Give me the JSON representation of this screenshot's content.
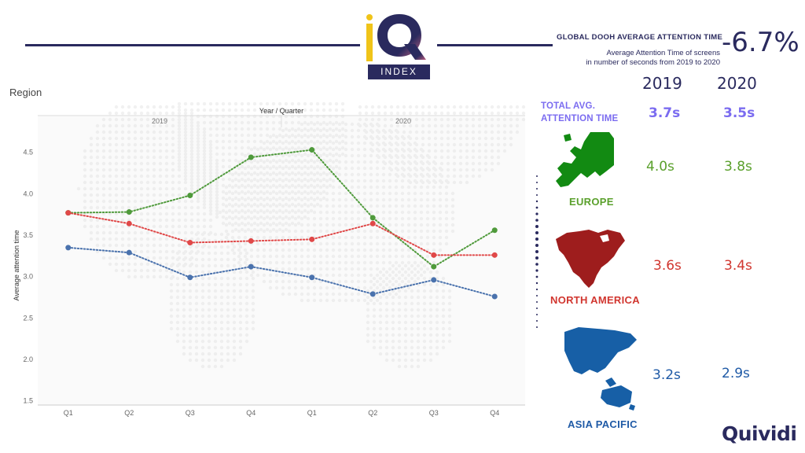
{
  "header": {
    "logo_text": "INDEX",
    "global_title": "GLOBAL DOOH AVERAGE ATTENTION TIME",
    "global_value": "-6.7%",
    "global_sub_line1": "Average Attention Time of screens",
    "global_sub_line2": "in number of seconds from 2019 to 2020"
  },
  "region_label": "Region",
  "columns": {
    "y2019": "2019",
    "y2020": "2020"
  },
  "total": {
    "label_line1": "TOTAL AVG.",
    "label_line2": "ATTENTION TIME",
    "v2019": "3.7s",
    "v2020": "3.5s"
  },
  "regions": [
    {
      "name": "EUROPE",
      "v2019": "4.0s",
      "v2020": "3.8s",
      "color": "#5aa02c",
      "icon": "europe-map-icon"
    },
    {
      "name": "NORTH AMERICA",
      "v2019": "3.6s",
      "v2020": "3.4s",
      "color": "#d1362f",
      "icon": "north-america-map-icon"
    },
    {
      "name": "ASIA PACIFIC",
      "v2019": "3.2s",
      "v2020": "2.9s",
      "color": "#1f5aa6",
      "icon": "asia-pacific-map-icon"
    }
  ],
  "brand": "Quividi",
  "chart_data": {
    "type": "line",
    "title": "Year / Quarter",
    "xlabel": "",
    "ylabel": "Average attention time",
    "year_groups": [
      "2019",
      "2020"
    ],
    "categories": [
      "Q1",
      "Q2",
      "Q3",
      "Q4",
      "Q1",
      "Q2",
      "Q3",
      "Q4"
    ],
    "yticks": [
      "1.5",
      "2.0",
      "2.5",
      "3.0",
      "3.5",
      "4.0",
      "4.5"
    ],
    "ylim": [
      1.45,
      4.82
    ],
    "grid": false,
    "series": [
      {
        "values": [
          3.77,
          3.78,
          3.98,
          4.44,
          4.53,
          3.71,
          3.12,
          3.56
        ],
        "color": "#4f9a3b"
      },
      {
        "values": [
          3.77,
          3.64,
          3.41,
          3.43,
          3.45,
          3.64,
          3.26,
          3.26
        ],
        "color": "#e04848"
      },
      {
        "values": [
          3.35,
          3.29,
          2.99,
          3.12,
          2.99,
          2.79,
          2.96,
          2.76
        ],
        "color": "#4a72ad"
      }
    ]
  }
}
